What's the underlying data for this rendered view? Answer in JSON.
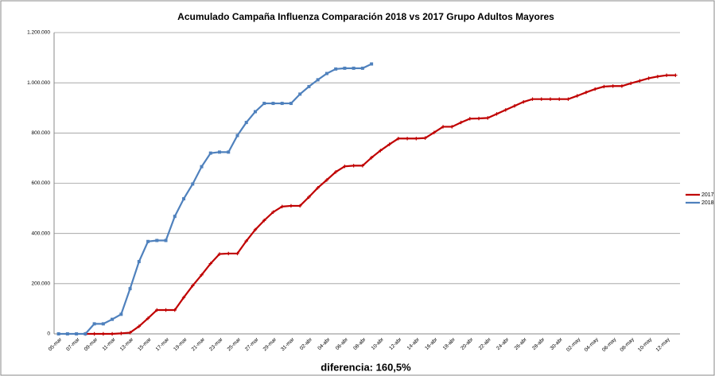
{
  "chart_data": {
    "type": "line",
    "title": "Acumulado Campaña Influenza Comparación 2018 vs 2017  Grupo Adultos Mayores",
    "annotation": "diferencia: 160,5%",
    "categories": [
      "05-mar",
      null,
      "07-mar",
      null,
      "09-mar",
      null,
      "11-mar",
      null,
      "13-mar",
      null,
      "15-mar",
      null,
      "17-mar",
      null,
      "19-mar",
      null,
      "21-mar",
      null,
      "23-mar",
      null,
      "25-mar",
      null,
      "27-mar",
      null,
      "29-mar",
      null,
      "31-mar",
      null,
      "02-abr",
      null,
      "04-abr",
      null,
      "06-abr",
      null,
      "08-abr",
      null,
      "10-abr",
      null,
      "12-abr",
      null,
      "14-abr",
      null,
      "16-abr",
      null,
      "18-abr",
      null,
      "20-abr",
      null,
      "22-abr",
      null,
      "24-abr",
      null,
      "26-abr",
      null,
      "28-abr",
      null,
      "30-abr",
      null,
      "02-may",
      null,
      "04-may",
      null,
      "06-may",
      null,
      "08-may",
      null,
      "10-may",
      null,
      "12-may",
      null
    ],
    "series": [
      {
        "name": "2017",
        "color": "#c00000",
        "values": [
          null,
          null,
          null,
          0,
          0,
          0,
          0,
          2000,
          5000,
          30000,
          62000,
          95000,
          95000,
          95000,
          145000,
          192000,
          235000,
          280000,
          318000,
          320000,
          320000,
          370000,
          415000,
          452000,
          485000,
          507000,
          510000,
          510000,
          545000,
          582000,
          613000,
          645000,
          667000,
          670000,
          670000,
          702000,
          730000,
          755000,
          778000,
          778000,
          778000,
          780000,
          802000,
          825000,
          825000,
          842000,
          857000,
          858000,
          860000,
          876000,
          892000,
          908000,
          924000,
          935000,
          935000,
          935000,
          935000,
          935000,
          948000,
          962000,
          975000,
          985000,
          987000,
          987000,
          998000,
          1008000,
          1018000,
          1025000,
          1030000,
          1030000
        ]
      },
      {
        "name": "2018",
        "color": "#4f81bd",
        "values": [
          0,
          0,
          0,
          0,
          40000,
          40000,
          58000,
          78000,
          180000,
          288000,
          368000,
          372000,
          372000,
          468000,
          538000,
          597000,
          666000,
          720000,
          724000,
          724000,
          790000,
          842000,
          885000,
          918000,
          918000,
          918000,
          918000,
          955000,
          985000,
          1012000,
          1037000,
          1055000,
          1058000,
          1058000,
          1058000,
          1075000,
          null,
          null,
          null,
          null,
          null,
          null,
          null,
          null,
          null,
          null,
          null,
          null,
          null,
          null,
          null,
          null,
          null,
          null,
          null,
          null,
          null,
          null,
          null,
          null,
          null,
          null,
          null,
          null,
          null,
          null,
          null,
          null,
          null,
          null
        ]
      }
    ],
    "ylim": [
      0,
      1200000
    ],
    "yticks": [
      0,
      {
        "value": 200000,
        "label": "200.000"
      },
      {
        "value": 400000,
        "label": "400.000"
      },
      {
        "value": 600000,
        "label": "600.000"
      },
      {
        "value": 800000,
        "label": "800.000"
      },
      {
        "value": 1000000,
        "label": "1.000.000"
      },
      {
        "value": 1200000,
        "label": "1.200.000"
      }
    ],
    "grid": true,
    "legend": "right"
  }
}
